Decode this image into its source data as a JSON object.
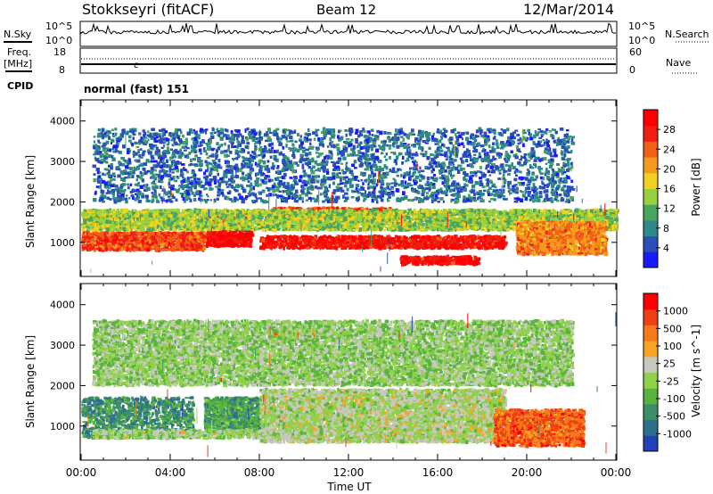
{
  "header": {
    "station": "Stokkseyri (fitACF)",
    "beam": "Beam 12",
    "date": "12/Mar/2014"
  },
  "top_panels": {
    "nsky_label": "N.Sky",
    "nsearch_label": "N.Search",
    "freq_label": "Freq.",
    "freq_unit": "[MHz]",
    "nave_label": "Nave",
    "cpid_label": "CPID",
    "cpid_value": "normal (fast) 151",
    "noise_ticks_left": [
      "10^5",
      "10^0"
    ],
    "noise_ticks_right": [
      "10^5",
      "10^0"
    ],
    "freq_ticks_left": [
      "18",
      "8"
    ],
    "freq_ticks_right": [
      "60",
      "0"
    ]
  },
  "colors": {
    "power_scale": [
      "#1a1aff",
      "#2b4fb8",
      "#2e8a86",
      "#4aa35f",
      "#97d13b",
      "#f2d21e",
      "#f59a1f",
      "#f26018",
      "#ef1f12",
      "#ff0000"
    ],
    "velocity_scale": [
      "#2241b8",
      "#2f6f8e",
      "#3a8f6a",
      "#58b43c",
      "#8fd24a",
      "#c8c8c0",
      "#f6a623",
      "#f47a1a",
      "#ef3f15",
      "#ff0000"
    ]
  },
  "chart_data": [
    {
      "type": "heatmap",
      "title": "Power",
      "xlabel": "",
      "ylabel": "Slant Range [km]",
      "colorbar_label": "Power [dB]",
      "colorbar_ticks": [
        "4",
        "8",
        "12",
        "16",
        "20",
        "24",
        "28"
      ],
      "yticks": [
        "1000",
        "2000",
        "3000",
        "4000"
      ],
      "ylim": [
        180,
        4500
      ],
      "xlim": [
        "00:00",
        "24:00"
      ],
      "grid": false,
      "bands": [
        {
          "t0": 0.0,
          "t1": 5.5,
          "r0": 800,
          "r1": 1250,
          "level": 0.8
        },
        {
          "t0": 5.6,
          "t1": 7.6,
          "r0": 900,
          "r1": 1750,
          "level": 0.95
        },
        {
          "t0": 8.0,
          "t1": 19.0,
          "r0": 850,
          "r1": 1150,
          "level": 0.9
        },
        {
          "t0": 14.3,
          "t1": 17.8,
          "r0": 450,
          "r1": 650,
          "level": 0.92
        },
        {
          "t0": 8.5,
          "t1": 14.0,
          "r0": 1550,
          "r1": 1850,
          "level": 0.8
        },
        {
          "t0": 0.0,
          "t1": 24.0,
          "r0": 1300,
          "r1": 1800,
          "level": 0.45
        },
        {
          "t0": 19.5,
          "t1": 23.5,
          "r0": 700,
          "r1": 1500,
          "level": 0.7
        },
        {
          "t0": 0.5,
          "t1": 22.0,
          "r0": 2000,
          "r1": 3800,
          "level": 0.2
        }
      ]
    },
    {
      "type": "heatmap",
      "title": "Velocity",
      "xlabel": "Time UT",
      "ylabel": "Slant Range [km]",
      "colorbar_label": "Velocity [m s^-1]",
      "colorbar_ticks": [
        "1000",
        "500",
        "100",
        "25",
        "-25",
        "-100",
        "-500",
        "-1000"
      ],
      "yticks": [
        "1000",
        "2000",
        "3000",
        "4000"
      ],
      "xticks": [
        "00:00",
        "04:00",
        "08:00",
        "12:00",
        "16:00",
        "20:00",
        "00:00"
      ],
      "ylim": [
        180,
        4500
      ],
      "xlim": [
        "00:00",
        "24:00"
      ],
      "grid": false,
      "bands": [
        {
          "t0": 0.0,
          "t1": 5.0,
          "r0": 700,
          "r1": 1700,
          "level": 0.25
        },
        {
          "t0": 5.5,
          "t1": 8.0,
          "r0": 800,
          "r1": 1700,
          "level": 0.3
        },
        {
          "t0": 8.0,
          "t1": 19.0,
          "r0": 600,
          "r1": 1900,
          "level": 0.5
        },
        {
          "t0": 18.5,
          "t1": 22.5,
          "r0": 500,
          "r1": 1400,
          "level": 0.8
        },
        {
          "t0": 0.5,
          "t1": 10.0,
          "r0": 700,
          "r1": 900,
          "level": 0.48
        },
        {
          "t0": 8.5,
          "t1": 10.5,
          "r0": 3100,
          "r1": 3400,
          "level": 0.75
        },
        {
          "t0": 0.5,
          "t1": 22.0,
          "r0": 2000,
          "r1": 3600,
          "level": 0.45
        }
      ]
    }
  ]
}
